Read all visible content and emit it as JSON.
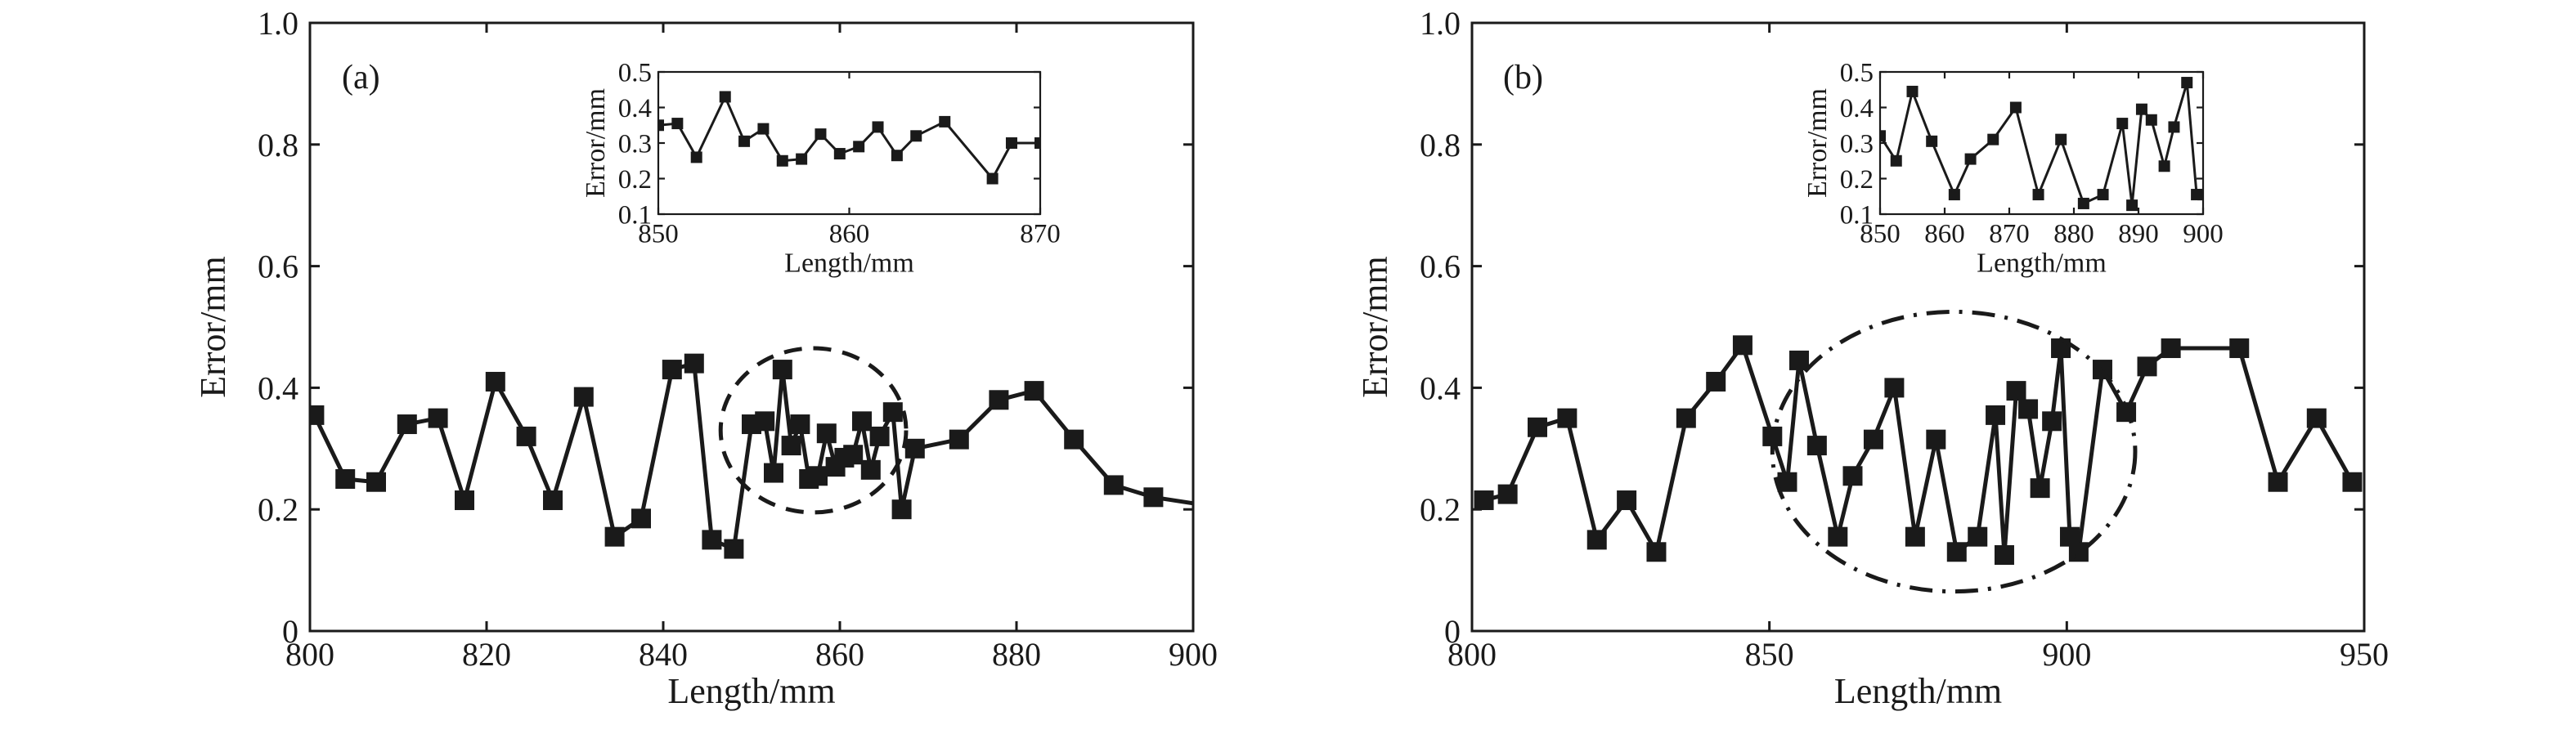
{
  "colors": {
    "ink": "#1a1a1a",
    "background": "#ffffff"
  },
  "chart_data": [
    {
      "panel_label": "(a)",
      "type": "line",
      "marker": "square",
      "xlabel": "Length/mm",
      "ylabel": "Error/mm",
      "xlim": [
        800,
        900
      ],
      "ylim": [
        0,
        1.0
      ],
      "xticks": [
        "800",
        "820",
        "840",
        "860",
        "880",
        "900"
      ],
      "yticks": [
        "0",
        "0.2",
        "0.4",
        "0.6",
        "0.8",
        "1.0"
      ],
      "x": [
        800.5,
        804,
        807.5,
        811,
        814.5,
        817.5,
        821,
        824.5,
        827.5,
        831,
        834.5,
        837.5,
        841,
        843.5,
        845.5,
        848,
        850,
        851.5,
        852.5,
        853.5,
        854.5,
        855.5,
        856.5,
        857.5,
        858.5,
        859.5,
        860.5,
        861.5,
        862.5,
        863.5,
        864.5,
        866,
        867,
        868.5,
        873.5,
        878,
        882,
        886.5,
        891,
        895.5,
        900
      ],
      "y": [
        0.355,
        0.25,
        0.245,
        0.34,
        0.35,
        0.215,
        0.41,
        0.32,
        0.215,
        0.385,
        0.155,
        0.185,
        0.43,
        0.44,
        0.15,
        0.135,
        0.34,
        0.345,
        0.26,
        0.43,
        0.305,
        0.34,
        0.25,
        0.255,
        0.325,
        0.27,
        0.285,
        0.29,
        0.345,
        0.265,
        0.32,
        0.36,
        0.2,
        0.3,
        0.315,
        0.38,
        0.395,
        0.315,
        0.24,
        0.22,
        0.21
      ],
      "marker_present": [
        true,
        true,
        true,
        true,
        true,
        true,
        true,
        true,
        true,
        true,
        true,
        true,
        true,
        true,
        true,
        true,
        true,
        true,
        true,
        true,
        true,
        true,
        true,
        true,
        true,
        true,
        true,
        true,
        true,
        true,
        true,
        true,
        true,
        true,
        true,
        true,
        true,
        true,
        true,
        true,
        false
      ],
      "highlight": {
        "style": "dashed-circle",
        "cx": 857,
        "cy": 0.33,
        "rx": 10.5,
        "ry": 0.135
      },
      "inset": {
        "type": "line",
        "marker": "square",
        "xlabel": "Length/mm",
        "ylabel": "Error/mm",
        "xlim": [
          850,
          870
        ],
        "ylim": [
          0.1,
          0.5
        ],
        "xticks": [
          "850",
          "860",
          "870"
        ],
        "yticks": [
          "0.1",
          "0.2",
          "0.3",
          "0.4",
          "0.5"
        ],
        "x": [
          850,
          851,
          852,
          853.5,
          854.5,
          855.5,
          856.5,
          857.5,
          858.5,
          859.5,
          860.5,
          861.5,
          862.5,
          863.5,
          865,
          867.5,
          868.5,
          870
        ],
        "y": [
          0.35,
          0.355,
          0.26,
          0.43,
          0.305,
          0.34,
          0.25,
          0.255,
          0.325,
          0.27,
          0.29,
          0.345,
          0.265,
          0.32,
          0.36,
          0.2,
          0.3,
          0.3
        ]
      }
    },
    {
      "panel_label": "(b)",
      "type": "line",
      "marker": "square",
      "xlabel": "Length/mm",
      "ylabel": "Error/mm",
      "xlim": [
        800,
        950
      ],
      "ylim": [
        0,
        1.0
      ],
      "xticks": [
        "800",
        "850",
        "900",
        "950"
      ],
      "yticks": [
        "0",
        "0.2",
        "0.4",
        "0.6",
        "0.8",
        "1.0"
      ],
      "x": [
        802,
        806,
        811,
        816,
        821,
        826,
        831,
        836,
        841,
        845.5,
        850.5,
        853,
        855,
        858,
        861.5,
        864,
        867.5,
        871,
        874.5,
        878,
        881.5,
        885,
        888,
        889.5,
        891.5,
        893.5,
        895.5,
        897.5,
        899,
        900.5,
        902,
        906,
        910,
        913.5,
        917.5,
        929,
        935.5,
        942,
        948
      ],
      "y": [
        0.215,
        0.225,
        0.335,
        0.35,
        0.15,
        0.215,
        0.13,
        0.35,
        0.41,
        0.47,
        0.32,
        0.245,
        0.445,
        0.305,
        0.155,
        0.255,
        0.315,
        0.4,
        0.155,
        0.315,
        0.13,
        0.155,
        0.355,
        0.125,
        0.395,
        0.365,
        0.235,
        0.345,
        0.465,
        0.155,
        0.13,
        0.43,
        0.36,
        0.435,
        0.465,
        0.465,
        0.245,
        0.35,
        0.245
      ],
      "marker_present": [
        true,
        true,
        true,
        true,
        true,
        true,
        true,
        true,
        true,
        true,
        true,
        true,
        true,
        true,
        true,
        true,
        true,
        true,
        true,
        true,
        true,
        true,
        true,
        true,
        true,
        true,
        true,
        true,
        true,
        true,
        true,
        true,
        true,
        true,
        true,
        true,
        true,
        true,
        true
      ],
      "highlight": {
        "style": "dash-dot-circle",
        "cx": 881,
        "cy": 0.295,
        "rx": 30.5,
        "ry": 0.23
      },
      "inset": {
        "type": "line",
        "marker": "square",
        "xlabel": "Length/mm",
        "ylabel": "Error/mm",
        "xlim": [
          850,
          900
        ],
        "ylim": [
          0.1,
          0.5
        ],
        "xticks": [
          "850",
          "860",
          "870",
          "880",
          "890",
          "900"
        ],
        "yticks": [
          "0.1",
          "0.2",
          "0.3",
          "0.4",
          "0.5"
        ],
        "x": [
          850,
          852.5,
          855,
          858,
          861.5,
          864,
          867.5,
          871,
          874.5,
          878,
          881.5,
          884.5,
          887.5,
          889,
          890.5,
          892,
          894,
          895.5,
          897.5,
          899,
          900
        ],
        "y": [
          0.32,
          0.25,
          0.445,
          0.305,
          0.155,
          0.255,
          0.31,
          0.4,
          0.155,
          0.31,
          0.13,
          0.155,
          0.355,
          0.125,
          0.395,
          0.365,
          0.235,
          0.345,
          0.47,
          0.155,
          0.155
        ]
      }
    }
  ]
}
